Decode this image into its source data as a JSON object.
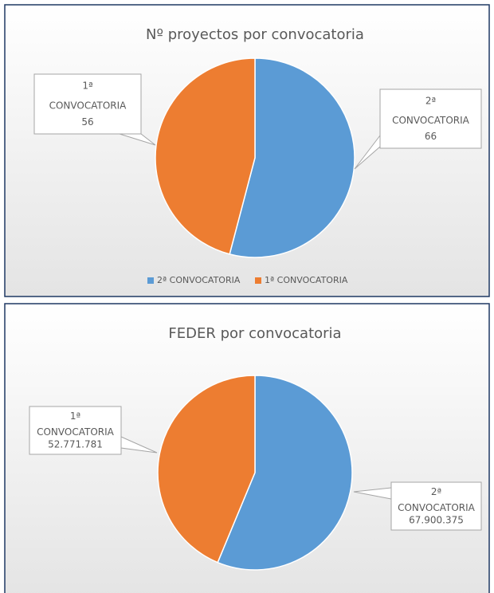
{
  "chart_data": [
    {
      "type": "pie",
      "title": "Nº proyectos por convocatoria",
      "categories": [
        "2ª CONVOCATORIA",
        "1ª CONVOCATORIA"
      ],
      "values": [
        66,
        56
      ],
      "colors": [
        "#5b9bd5",
        "#ed7d31"
      ],
      "legend": "bottom"
    },
    {
      "type": "pie",
      "title": "FEDER por convocatoria",
      "categories": [
        "2ª CONVOCATORIA",
        "1ª CONVOCATORIA"
      ],
      "values": [
        67900375,
        52771781
      ],
      "value_labels": [
        "67.900.375",
        "52.771.781"
      ],
      "colors": [
        "#5b9bd5",
        "#ed7d31"
      ]
    }
  ]
}
